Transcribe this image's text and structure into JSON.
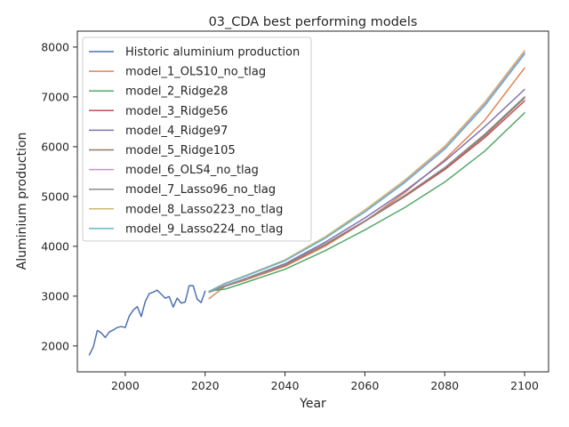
{
  "chart_data": {
    "type": "line",
    "title": "03_CDA best performing models",
    "xlabel": "Year",
    "ylabel": "Aluminium production",
    "xlim": [
      1988,
      2106
    ],
    "ylim": [
      1480,
      8320
    ],
    "xticks": [
      2000,
      2020,
      2040,
      2060,
      2080,
      2100
    ],
    "yticks": [
      2000,
      3000,
      4000,
      5000,
      6000,
      7000,
      8000
    ],
    "grid": false,
    "legend_position": "top-left",
    "series": [
      {
        "name": "Historic aluminium production",
        "color": "#4c72b0",
        "x": [
          1991,
          1992,
          1993,
          1994,
          1995,
          1996,
          1997,
          1998,
          1999,
          2000,
          2001,
          2002,
          2003,
          2004,
          2005,
          2006,
          2007,
          2008,
          2009,
          2010,
          2011,
          2012,
          2013,
          2014,
          2015,
          2016,
          2017,
          2018,
          2019,
          2020
        ],
        "y": [
          1820,
          1980,
          2310,
          2260,
          2170,
          2280,
          2320,
          2370,
          2390,
          2370,
          2600,
          2720,
          2790,
          2590,
          2890,
          3050,
          3080,
          3120,
          3040,
          2960,
          2990,
          2780,
          2960,
          2860,
          2880,
          3210,
          3210,
          2940,
          2870,
          3100
        ]
      },
      {
        "name": "model_1_OLS10_no_tlag",
        "color": "#dd8452",
        "x": [
          2021,
          2025,
          2030,
          2040,
          2050,
          2060,
          2070,
          2080,
          2090,
          2100
        ],
        "y": [
          2950,
          3200,
          3320,
          3600,
          4000,
          4500,
          5080,
          5740,
          6530,
          7580
        ]
      },
      {
        "name": "model_2_Ridge28",
        "color": "#55a868",
        "x": [
          2021,
          2025,
          2030,
          2040,
          2050,
          2060,
          2070,
          2080,
          2090,
          2100
        ],
        "y": [
          3100,
          3140,
          3270,
          3540,
          3910,
          4330,
          4780,
          5290,
          5910,
          6680
        ]
      },
      {
        "name": "model_3_Ridge56",
        "color": "#c44e52",
        "x": [
          2021,
          2025,
          2030,
          2040,
          2050,
          2060,
          2070,
          2080,
          2090,
          2100
        ],
        "y": [
          3080,
          3200,
          3340,
          3620,
          4030,
          4500,
          5000,
          5540,
          6180,
          6920
        ]
      },
      {
        "name": "model_4_Ridge97",
        "color": "#8172b3",
        "x": [
          2021,
          2025,
          2030,
          2040,
          2050,
          2060,
          2070,
          2080,
          2090,
          2100
        ],
        "y": [
          3080,
          3210,
          3350,
          3650,
          4080,
          4570,
          5110,
          5710,
          6400,
          7150
        ]
      },
      {
        "name": "model_5_Ridge105",
        "color": "#937860",
        "x": [
          2021,
          2025,
          2030,
          2040,
          2050,
          2060,
          2070,
          2080,
          2090,
          2100
        ],
        "y": [
          3080,
          3200,
          3340,
          3630,
          4040,
          4510,
          5020,
          5570,
          6220,
          6980
        ]
      },
      {
        "name": "model_6_OLS4_no_tlag",
        "color": "#da8bc3",
        "x": [
          2021,
          2025,
          2030,
          2040,
          2050,
          2060,
          2070,
          2080,
          2090,
          2100
        ],
        "y": [
          3100,
          3250,
          3400,
          3720,
          4170,
          4700,
          5300,
          5980,
          6860,
          7890
        ]
      },
      {
        "name": "model_7_Lasso96_no_tlag",
        "color": "#8c8c8c",
        "x": [
          2021,
          2025,
          2030,
          2040,
          2050,
          2060,
          2070,
          2080,
          2090,
          2100
        ],
        "y": [
          3080,
          3200,
          3340,
          3630,
          4040,
          4510,
          5020,
          5580,
          6250,
          7000
        ]
      },
      {
        "name": "model_8_Lasso223_no_tlag",
        "color": "#ccb974",
        "x": [
          2021,
          2025,
          2030,
          2040,
          2050,
          2060,
          2070,
          2080,
          2090,
          2100
        ],
        "y": [
          3100,
          3260,
          3410,
          3730,
          4190,
          4730,
          5330,
          6010,
          6890,
          7930
        ]
      },
      {
        "name": "model_9_Lasso224_no_tlag",
        "color": "#64b5cd",
        "x": [
          2021,
          2025,
          2030,
          2040,
          2050,
          2060,
          2070,
          2080,
          2090,
          2100
        ],
        "y": [
          3090,
          3250,
          3400,
          3710,
          4160,
          4690,
          5280,
          5950,
          6820,
          7860
        ]
      }
    ]
  }
}
